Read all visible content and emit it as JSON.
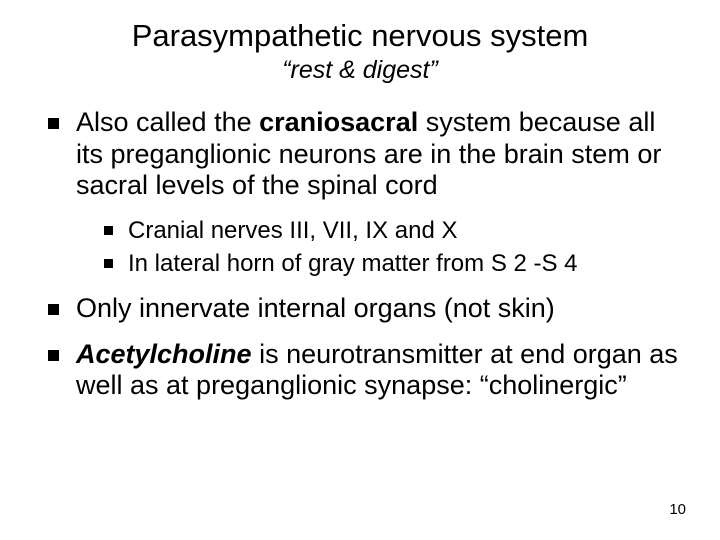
{
  "title": "Parasympathetic nervous system",
  "subtitle": "“rest & digest”",
  "bullets": {
    "b1_pre": "Also called the ",
    "b1_bold": "craniosacral",
    "b1_post": " system because all its preganglionic neurons are in the brain stem or sacral levels of the spinal cord",
    "b1_sub1": "Cranial nerves III, VII, IX and X",
    "b1_sub2": "In lateral horn of gray matter from S 2 -S 4",
    "b2": "Only innervate internal organs (not skin)",
    "b3_bold": "Acetylcholine",
    "b3_post": " is neurotransmitter at end organ as well as at preganglionic synapse: “cholinergic”"
  },
  "page_number": "10",
  "style": {
    "background_color": "#ffffff",
    "text_color": "#000000",
    "title_fontsize": 31,
    "subtitle_fontsize": 25,
    "body_fontsize": 27,
    "sub_fontsize": 24,
    "pagenum_fontsize": 15,
    "bullet_shape": "square",
    "font_family": "Arial"
  }
}
